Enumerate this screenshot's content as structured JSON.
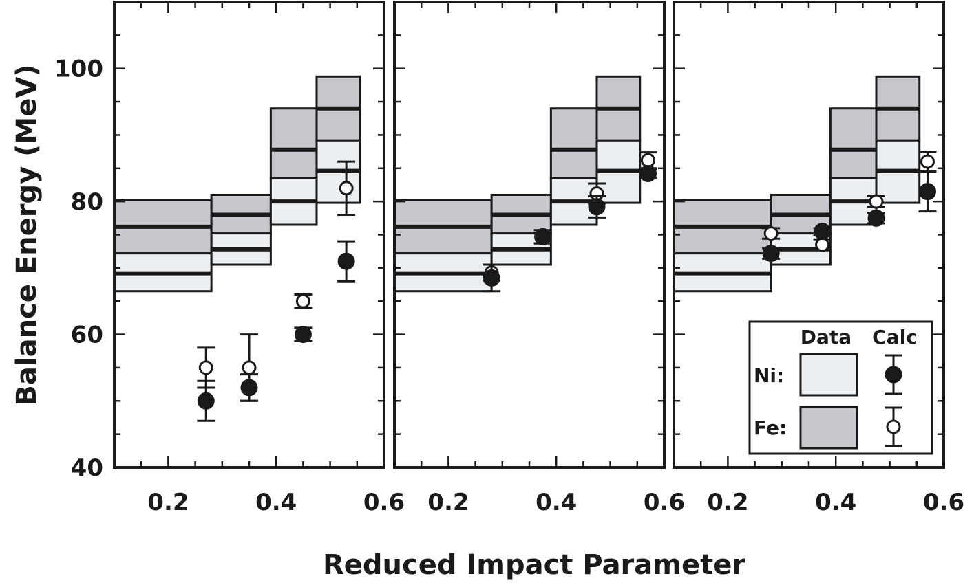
{
  "chart_data": {
    "type": "scatter",
    "xlabel": "Reduced Impact Parameter",
    "ylabel": "Balance Energy (MeV)",
    "xlim": [
      0.1,
      0.6
    ],
    "ylim": [
      40,
      110
    ],
    "xticks": [
      "0.2",
      "0.4",
      "0.6"
    ],
    "yticks": [
      "40",
      "60",
      "80",
      "100"
    ],
    "data_bands": [
      {
        "x0": 0.1,
        "x1": 0.28,
        "ni": {
          "low": 66.5,
          "mid": 69.2,
          "high": 72.2
        },
        "fe": {
          "low": 72.2,
          "mid": 76.2,
          "high": 80.2
        }
      },
      {
        "x0": 0.28,
        "x1": 0.39,
        "ni": {
          "low": 70.5,
          "mid": 72.8,
          "high": 75.2
        },
        "fe": {
          "low": 75.2,
          "mid": 78.0,
          "high": 81.0
        }
      },
      {
        "x0": 0.39,
        "x1": 0.475,
        "ni": {
          "low": 76.5,
          "mid": 80.0,
          "high": 83.5
        },
        "fe": {
          "low": 83.5,
          "mid": 87.8,
          "high": 94.0
        }
      },
      {
        "x0": 0.475,
        "x1": 0.555,
        "ni": {
          "low": 79.8,
          "mid": 84.6,
          "high": 89.2
        },
        "fe": {
          "low": 89.2,
          "mid": 94.0,
          "high": 98.8
        }
      }
    ],
    "panels": [
      {
        "ni": [
          {
            "x": 0.27,
            "y": 50.0,
            "err": 3.0
          },
          {
            "x": 0.35,
            "y": 52.0,
            "err": 2.0
          },
          {
            "x": 0.45,
            "y": 60.0,
            "err": 1.0
          },
          {
            "x": 0.53,
            "y": 71.0,
            "err": 3.0
          }
        ],
        "fe": [
          {
            "x": 0.27,
            "y": 55.0,
            "err": 3.0
          },
          {
            "x": 0.35,
            "y": 55.0,
            "err": 5.0
          },
          {
            "x": 0.45,
            "y": 65.0,
            "err": 1.0
          },
          {
            "x": 0.53,
            "y": 82.0,
            "err": 4.0
          }
        ]
      },
      {
        "ni": [
          {
            "x": 0.28,
            "y": 68.5,
            "err": 2.0
          },
          {
            "x": 0.375,
            "y": 74.7,
            "err": 1.0
          },
          {
            "x": 0.475,
            "y": 79.2,
            "err": 1.6
          },
          {
            "x": 0.57,
            "y": 84.2,
            "err": 0.6
          }
        ],
        "fe": [
          {
            "x": 0.28,
            "y": 69.3,
            "err": 1.2
          },
          {
            "x": 0.375,
            "y": 74.5,
            "err": 0.8
          },
          {
            "x": 0.475,
            "y": 81.2,
            "err": 1.5
          },
          {
            "x": 0.57,
            "y": 86.2,
            "err": 1.2
          }
        ]
      },
      {
        "ni": [
          {
            "x": 0.28,
            "y": 72.2,
            "err": 0.8
          },
          {
            "x": 0.375,
            "y": 75.5,
            "err": 0.5
          },
          {
            "x": 0.475,
            "y": 77.5,
            "err": 0.8
          },
          {
            "x": 0.57,
            "y": 81.5,
            "err": 3.0
          }
        ],
        "fe": [
          {
            "x": 0.28,
            "y": 75.2,
            "err": 0.8
          },
          {
            "x": 0.375,
            "y": 73.5,
            "err": 0.8
          },
          {
            "x": 0.475,
            "y": 80.0,
            "err": 0.8
          },
          {
            "x": 0.57,
            "y": 86.0,
            "err": 1.5
          }
        ]
      }
    ],
    "legend": {
      "placement": "bottom-right of third panel",
      "col_data": "Data",
      "col_calc": "Calc",
      "ni_label": "Ni:",
      "fe_label": "Fe:"
    },
    "colors": {
      "ni_fill": "#edf0f3",
      "fe_fill": "#c6c8ce",
      "ink": "#1a1a1a"
    }
  }
}
